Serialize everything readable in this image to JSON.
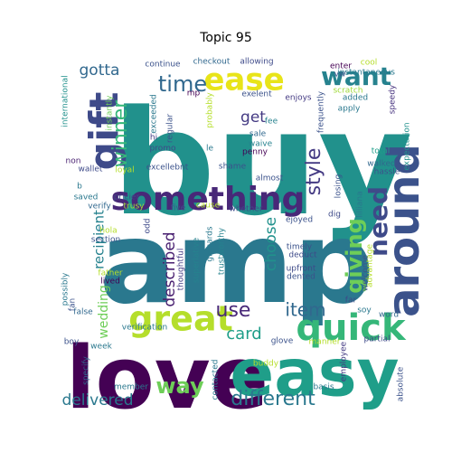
{
  "chart_data": {
    "type": "wordcloud",
    "title": "Topic 95",
    "words": [
      {
        "text": "buy",
        "color": "#21918c"
      },
      {
        "text": "amp",
        "color": "#2a788e"
      },
      {
        "text": "love",
        "color": "#440154"
      },
      {
        "text": "easy",
        "color": "#1f9e89"
      },
      {
        "text": "something",
        "color": "#482878"
      },
      {
        "text": "gift",
        "color": "#3e4a89"
      },
      {
        "text": "ease",
        "color": "#e8e419"
      },
      {
        "text": "around",
        "color": "#3b528b"
      },
      {
        "text": "great",
        "color": "#b5de2b"
      },
      {
        "text": "quick",
        "color": "#35b779"
      },
      {
        "text": "different",
        "color": "#2a788e"
      },
      {
        "text": "time",
        "color": "#31688e"
      },
      {
        "text": "want",
        "color": "#26828e"
      },
      {
        "text": "giving",
        "color": "#6ece58"
      },
      {
        "text": "need",
        "color": "#3e4a89"
      },
      {
        "text": "winner",
        "color": "#35b779"
      },
      {
        "text": "style",
        "color": "#443a83"
      },
      {
        "text": "way",
        "color": "#6ece58"
      },
      {
        "text": "use",
        "color": "#482878"
      },
      {
        "text": "item",
        "color": "#31688e"
      },
      {
        "text": "card",
        "color": "#1f9e89"
      },
      {
        "text": "delivered",
        "color": "#2a788e"
      },
      {
        "text": "gotta",
        "color": "#31688e"
      },
      {
        "text": "get",
        "color": "#443a83"
      },
      {
        "text": "choose",
        "color": "#21918c"
      },
      {
        "text": "described",
        "color": "#481f70"
      },
      {
        "text": "recipient",
        "color": "#26828e"
      },
      {
        "text": "allowing",
        "color": "#3e4a89"
      },
      {
        "text": "checkout",
        "color": "#31688e"
      },
      {
        "text": "continue",
        "color": "#3b528b"
      },
      {
        "text": "enter",
        "color": "#440154"
      },
      {
        "text": "cool",
        "color": "#b5de2b"
      },
      {
        "text": "vw",
        "color": "#3b528b"
      },
      {
        "text": "instantaneous",
        "color": "#2a788e"
      },
      {
        "text": "exelent",
        "color": "#3b528b"
      },
      {
        "text": "enjoys",
        "color": "#443a83"
      },
      {
        "text": "mp",
        "color": "#440154"
      },
      {
        "text": "fee",
        "color": "#26828e"
      },
      {
        "text": "scratch",
        "color": "#a0da39"
      },
      {
        "text": "added",
        "color": "#2a788e"
      },
      {
        "text": "speedy",
        "color": "#46327e"
      },
      {
        "text": "apply",
        "color": "#2a788e"
      },
      {
        "text": "expectation",
        "color": "#21918c"
      },
      {
        "text": "international",
        "color": "#21918c"
      },
      {
        "text": "instantly",
        "color": "#6ece58"
      },
      {
        "text": "exceeded",
        "color": "#2a788e"
      },
      {
        "text": "probably",
        "color": "#b5de2b"
      },
      {
        "text": "frequently",
        "color": "#3b528b"
      },
      {
        "text": "sale",
        "color": "#31688e"
      },
      {
        "text": "waive",
        "color": "#26828e"
      },
      {
        "text": "penny",
        "color": "#440154"
      },
      {
        "text": "regular",
        "color": "#3b528b"
      },
      {
        "text": "hi",
        "color": "#443a83"
      },
      {
        "text": "promo",
        "color": "#3e4a89"
      },
      {
        "text": "le",
        "color": "#2a788e"
      },
      {
        "text": "shame",
        "color": "#3b528b"
      },
      {
        "text": "non",
        "color": "#481f70"
      },
      {
        "text": "wallet",
        "color": "#3e4a89"
      },
      {
        "text": "excellebnt",
        "color": "#3b528b"
      },
      {
        "text": "loyal",
        "color": "#b5de2b"
      },
      {
        "text": "almost",
        "color": "#3b528b"
      },
      {
        "text": "total",
        "color": "#1f9e89"
      },
      {
        "text": "walked",
        "color": "#31688e"
      },
      {
        "text": "hassle",
        "color": "#3b528b"
      },
      {
        "text": "b",
        "color": "#2a788e"
      },
      {
        "text": "saved",
        "color": "#2a788e"
      },
      {
        "text": "pricier",
        "color": "#3e4a89"
      },
      {
        "text": "verify",
        "color": "#31688e"
      },
      {
        "text": "trusy",
        "color": "#a0da39"
      },
      {
        "text": "five",
        "color": "#3b528b"
      },
      {
        "text": "cause",
        "color": "#b5de2b"
      },
      {
        "text": "whether",
        "color": "#3e4a89"
      },
      {
        "text": "ejoyed",
        "color": "#3b528b"
      },
      {
        "text": "dig",
        "color": "#3e4a89"
      },
      {
        "text": "losing",
        "color": "#3b528b"
      },
      {
        "text": "lilliana",
        "color": "#2a788e"
      },
      {
        "text": "timely",
        "color": "#3b528b"
      },
      {
        "text": "deduct",
        "color": "#3e4a89"
      },
      {
        "text": "hola",
        "color": "#b5de2b"
      },
      {
        "text": "section",
        "color": "#3b528b"
      },
      {
        "text": "odd",
        "color": "#3e4a89"
      },
      {
        "text": "giftcards",
        "color": "#2a788e"
      },
      {
        "text": "superlative",
        "color": "#26828e"
      },
      {
        "text": "trustworthy",
        "color": "#26828e"
      },
      {
        "text": "thoughtful",
        "color": "#443a83"
      },
      {
        "text": "upfront",
        "color": "#3e4a89"
      },
      {
        "text": "dented",
        "color": "#3b528b"
      },
      {
        "text": "father",
        "color": "#b5de2b"
      },
      {
        "text": "lived",
        "color": "#440154"
      },
      {
        "text": "welcome",
        "color": "#3b528b"
      },
      {
        "text": "advantage",
        "color": "#b5de2b"
      },
      {
        "text": "possibly",
        "color": "#2a788e"
      },
      {
        "text": "wedding",
        "color": "#6ece58"
      },
      {
        "text": "false",
        "color": "#31688e"
      },
      {
        "text": "verification",
        "color": "#2a788e"
      },
      {
        "text": "far",
        "color": "#3e4a89"
      },
      {
        "text": "soy",
        "color": "#2a788e"
      },
      {
        "text": "word",
        "color": "#31688e"
      },
      {
        "text": "fan",
        "color": "#3b528b"
      },
      {
        "text": "boy",
        "color": "#3b528b"
      },
      {
        "text": "week",
        "color": "#2a788e"
      },
      {
        "text": "glove",
        "color": "#3b528b"
      },
      {
        "text": "manner",
        "color": "#b5de2b"
      },
      {
        "text": "partial",
        "color": "#3e4a89"
      },
      {
        "text": "employee",
        "color": "#443a83"
      },
      {
        "text": "specify",
        "color": "#31688e"
      },
      {
        "text": "contacted",
        "color": "#2a788e"
      },
      {
        "text": "buddy",
        "color": "#b5de2b"
      },
      {
        "text": "member",
        "color": "#2a788e"
      },
      {
        "text": "basis",
        "color": "#2a788e"
      },
      {
        "text": "absolute",
        "color": "#3b528b"
      }
    ]
  }
}
